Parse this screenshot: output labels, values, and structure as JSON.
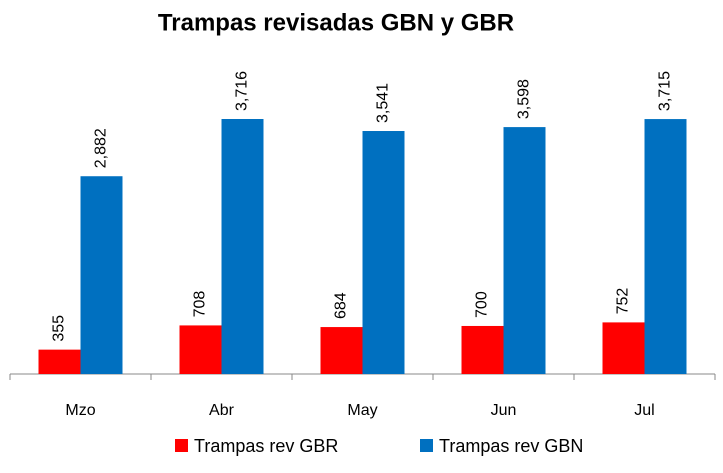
{
  "chart_data": {
    "type": "bar",
    "title": "Trampas revisadas GBN y GBR",
    "categories": [
      "Mzo",
      "Abr",
      "May",
      "Jun",
      "Jul"
    ],
    "series": [
      {
        "name": "Trampas rev GBR",
        "color": "#ff0000",
        "values": [
          355,
          708,
          684,
          700,
          752
        ],
        "value_labels": [
          "355",
          "708",
          "684",
          "700",
          "752"
        ]
      },
      {
        "name": "Trampas rev GBN",
        "color": "#0070c0",
        "values": [
          2882,
          3716,
          3541,
          3598,
          3715
        ],
        "value_labels": [
          "2,882",
          "3,716",
          "3,541",
          "3,598",
          "3,715"
        ]
      }
    ],
    "legend": "bottom"
  }
}
